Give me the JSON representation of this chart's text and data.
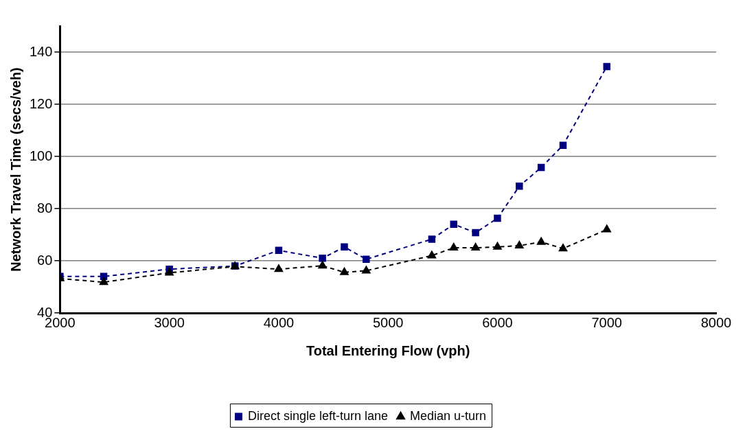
{
  "chart_data": {
    "type": "line",
    "xlabel": "Total Entering Flow (vph)",
    "ylabel": "Network Travel Time (secs/veh)",
    "x": [
      2000,
      2400,
      3000,
      3600,
      4000,
      4400,
      4600,
      4800,
      5400,
      5600,
      5800,
      6000,
      6200,
      6400,
      6600,
      7000
    ],
    "series": [
      {
        "name": "Direct single left-turn lane",
        "color": "#000080",
        "marker": "square",
        "values": [
          54,
          54,
          56.8,
          58,
          64,
          61,
          65.3,
          60.6,
          68.3,
          74,
          70.8,
          76.3,
          88.6,
          95.8,
          104.3,
          134.5
        ]
      },
      {
        "name": "Median u-turn",
        "color": "#000000",
        "marker": "triangle",
        "values": [
          53.2,
          51.8,
          55.4,
          57.8,
          56.8,
          58.1,
          55.6,
          56.2,
          62,
          65,
          65,
          65.3,
          65.8,
          67.2,
          64.7,
          72
        ]
      }
    ],
    "xlim": [
      2000,
      8000
    ],
    "xticks": [
      2000,
      3000,
      4000,
      5000,
      6000,
      7000,
      8000
    ],
    "ylim": [
      40,
      150
    ],
    "yticks": [
      40,
      60,
      80,
      100,
      120,
      140
    ],
    "grid": "y",
    "legend": "bottom",
    "line_style": "dashed"
  }
}
